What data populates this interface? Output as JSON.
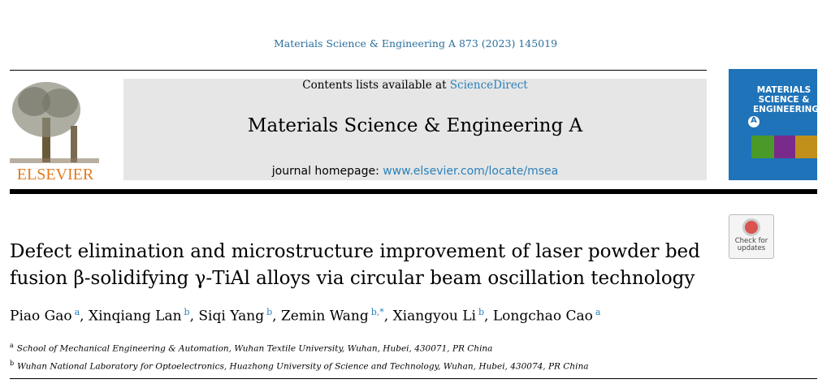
{
  "journal_ref": "Materials Science & Engineering A 873 (2023) 145019",
  "header": {
    "contents_prefix": "Contents lists available at",
    "contents_link": "ScienceDirect",
    "journal_title": "Materials Science & Engineering A",
    "homepage_prefix": "journal homepage:",
    "homepage_link": "www.elsevier.com/locate/msea",
    "publisher": "ELSEVIER",
    "cover_title": "MATERIALS SCIENCE & ENGINEERING",
    "cover_letter": "A"
  },
  "badge": "Check for updates",
  "title": [
    "Defect elimination and microstructure improvement of laser powder bed",
    "fusion β-solidifying γ-TiAl alloys via circular beam oscillation technology"
  ],
  "author_separator": ", ",
  "authors": [
    {
      "name": "Piao Gao",
      "sup": "a"
    },
    {
      "name": "Xinqiang Lan",
      "sup": "b"
    },
    {
      "name": "Siqi Yang",
      "sup": "b"
    },
    {
      "name": "Zemin Wang",
      "sup": "b,*"
    },
    {
      "name": "Xiangyou Li",
      "sup": "b"
    },
    {
      "name": "Longchao Cao",
      "sup": "a"
    }
  ],
  "affiliations": [
    {
      "label": "a",
      "text": "School of Mechanical Engineering & Automation, Wuhan Textile University, Wuhan, Hubei, 430071, PR China"
    },
    {
      "label": "b",
      "text": "Wuhan National Laboratory for Optoelectronics, Huazhong University of Science and Technology, Wuhan, Hubei, 430074, PR China"
    }
  ]
}
